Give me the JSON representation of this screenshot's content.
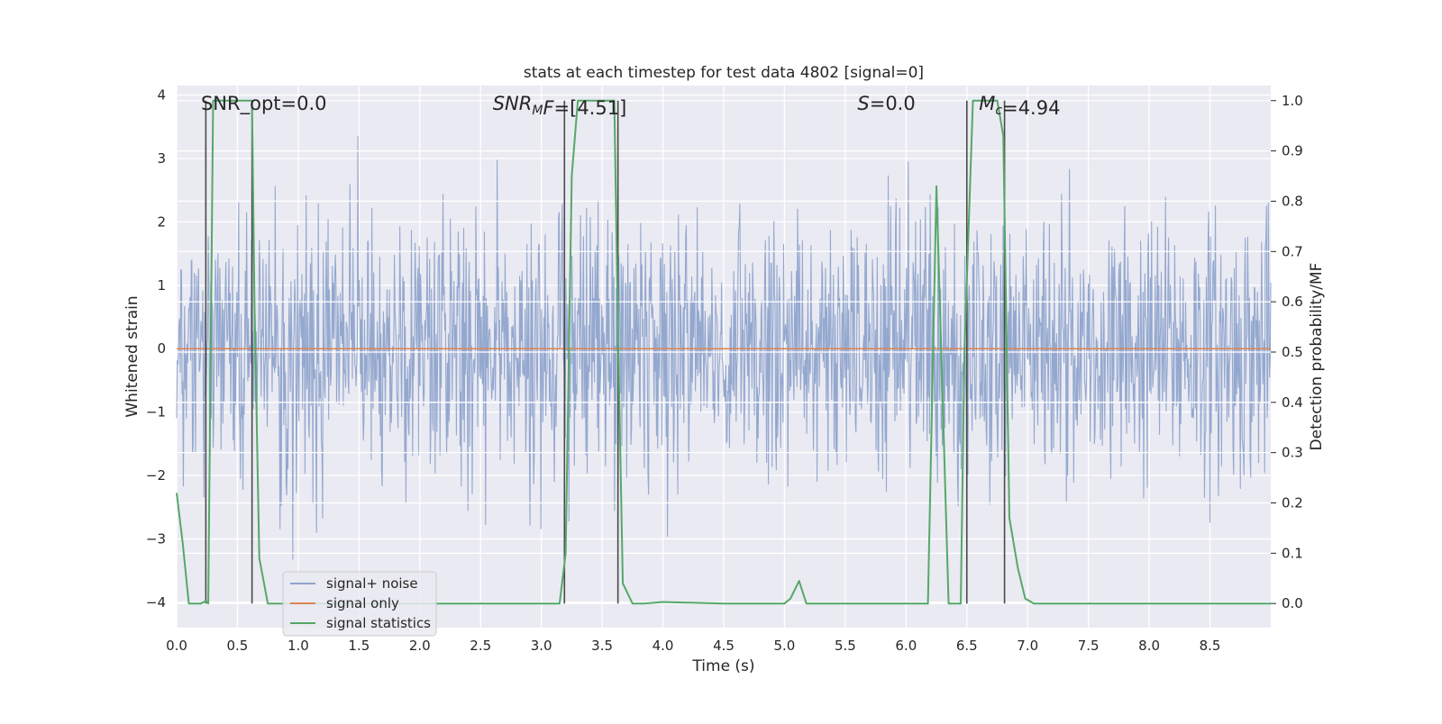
{
  "chart_data": {
    "type": "line",
    "title": "stats at each timestep for test data 4802 [signal=0]",
    "xlabel": "Time (s)",
    "ylabel": "Whitened strain",
    "y2label": "Detection probability/MF",
    "xlim": [
      0.0,
      9.0
    ],
    "ylim": [
      -4.4,
      4.15
    ],
    "y2lim": [
      -0.048,
      1.03
    ],
    "x_ticks": [
      "0.0",
      "0.5",
      "1.0",
      "1.5",
      "2.0",
      "2.5",
      "3.0",
      "3.5",
      "4.0",
      "4.5",
      "5.0",
      "5.5",
      "6.0",
      "6.5",
      "7.0",
      "7.5",
      "8.0",
      "8.5"
    ],
    "y_ticks": [
      "−4",
      "−3",
      "−2",
      "−1",
      "0",
      "1",
      "2",
      "3",
      "4"
    ],
    "y2_ticks": [
      "0.0",
      "0.1",
      "0.2",
      "0.3",
      "0.4",
      "0.5",
      "0.6",
      "0.7",
      "0.8",
      "0.9",
      "1.0"
    ],
    "grid": true,
    "legend_position": "lower-left",
    "series": [
      {
        "name": "signal+ noise",
        "color": "#8fa4cc",
        "axis": "left",
        "style": "dense noise, approx. ±2.3 typical, peaks near ±3.5",
        "t_range": [
          0.0,
          9.0
        ],
        "sample_count": 1800
      },
      {
        "name": "signal only",
        "color": "#dd8452",
        "axis": "left",
        "x": [
          0.0,
          9.0
        ],
        "y": [
          0.0,
          0.0
        ]
      },
      {
        "name": "signal statistics",
        "color": "#55a868",
        "axis": "right",
        "x": [
          0.0,
          0.05,
          0.1,
          0.2,
          0.24,
          0.26,
          0.3,
          0.4,
          0.5,
          0.55,
          0.62,
          0.64,
          0.68,
          0.75,
          0.85,
          1.0,
          2.0,
          3.0,
          3.15,
          3.2,
          3.25,
          3.3,
          3.4,
          3.5,
          3.6,
          3.63,
          3.67,
          3.75,
          3.85,
          4.0,
          4.5,
          5.0,
          5.05,
          5.12,
          5.18,
          5.3,
          6.1,
          6.18,
          6.25,
          6.35,
          6.4,
          6.45,
          6.48,
          6.55,
          6.65,
          6.7,
          6.75,
          6.8,
          6.85,
          6.92,
          6.98,
          7.05,
          7.15,
          8.0,
          9.0
        ],
        "y": [
          0.22,
          0.12,
          0.0,
          0.0,
          0.005,
          0.0,
          1.0,
          1.0,
          1.0,
          1.0,
          1.0,
          0.6,
          0.09,
          0.0,
          0.0,
          0.0,
          0.0,
          0.0,
          0.0,
          0.1,
          0.85,
          1.0,
          1.0,
          1.0,
          1.0,
          0.55,
          0.04,
          0.0,
          0.0,
          0.003,
          0.0,
          0.0,
          0.01,
          0.045,
          0.0,
          0.0,
          0.0,
          0.0,
          0.83,
          0.0,
          0.0,
          0.0,
          0.5,
          1.0,
          1.0,
          1.0,
          1.0,
          0.93,
          0.17,
          0.07,
          0.01,
          0.0,
          0.0,
          0.0,
          0.0
        ]
      }
    ],
    "vlines": [
      0.24,
      0.62,
      3.19,
      3.63,
      6.5,
      6.81
    ],
    "annotations": [
      {
        "text_parts": [
          {
            "t": "SNR_opt=0.0",
            "style": "normal"
          }
        ],
        "x": 0.2,
        "yfrac_label": "top-left"
      },
      {
        "text_parts": [
          {
            "t": "SNR",
            "style": "italic"
          },
          {
            "t": "M",
            "style": "italic-sub"
          },
          {
            "t": "F",
            "style": "italic"
          },
          {
            "t": "=[4.51]",
            "style": "normal"
          }
        ],
        "x": 2.6
      },
      {
        "text_parts": [
          {
            "t": "S",
            "style": "italic"
          },
          {
            "t": "=0.0",
            "style": "normal"
          }
        ],
        "x": 5.6
      },
      {
        "text_parts": [
          {
            "t": "M",
            "style": "italic"
          },
          {
            "t": "c",
            "style": "italic-sub"
          },
          {
            "t": "=4.94",
            "style": "normal"
          }
        ],
        "x": 6.6
      }
    ]
  }
}
